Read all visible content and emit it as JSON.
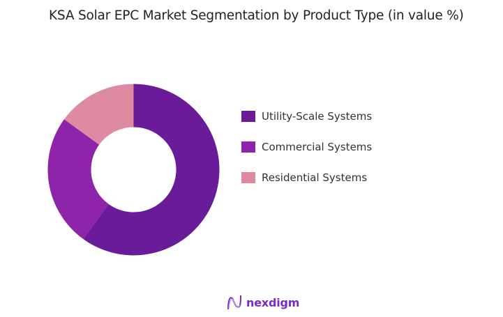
{
  "title": "KSA Solar EPC Market Segmentation by Product Type (in value %)",
  "chart_data": {
    "type": "pie",
    "subtype": "donut",
    "title": "KSA Solar EPC Market Segmentation by Product Type (in value %)",
    "categories": [
      "Utility-Scale Systems",
      "Commercial Systems",
      "Residential Systems"
    ],
    "values": [
      60,
      25,
      15
    ],
    "colors": [
      "#6A1B9A",
      "#8E24AA",
      "#DE8AA0"
    ],
    "legend_position": "right",
    "data_labels": false
  },
  "legend": {
    "items": [
      {
        "label": "Utility-Scale Systems",
        "color": "#6A1B9A"
      },
      {
        "label": "Commercial Systems",
        "color": "#8E24AA"
      },
      {
        "label": "Residential Systems",
        "color": "#DE8AA0"
      }
    ]
  },
  "branding": {
    "logo_text": "nexdigm"
  }
}
